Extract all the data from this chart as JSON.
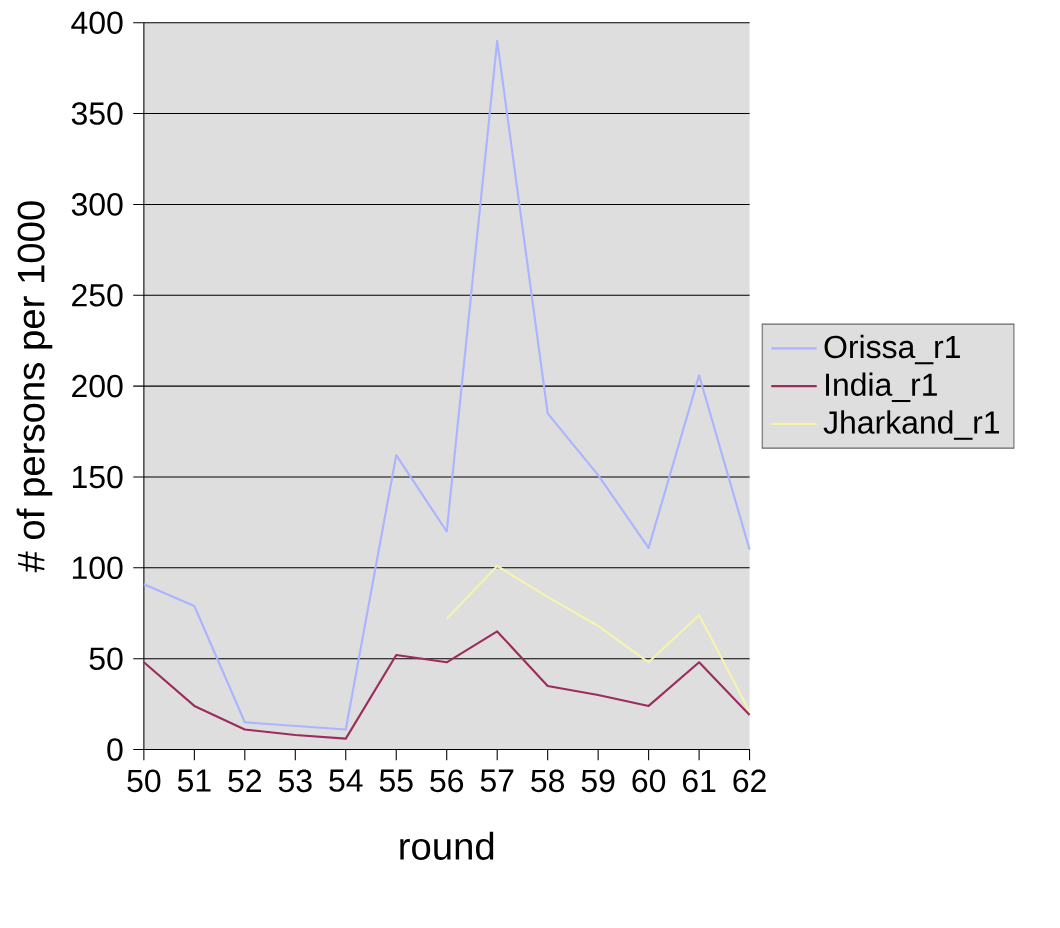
{
  "chart_data": {
    "type": "line",
    "xlabel": "round",
    "ylabel": "# of persons per 1000",
    "x": [
      50,
      51,
      52,
      53,
      54,
      55,
      56,
      57,
      58,
      59,
      60,
      61,
      62
    ],
    "series": [
      {
        "name": "Orissa_r1",
        "color": "#aab4ff",
        "values": [
          91,
          79,
          15,
          13,
          11,
          162,
          120,
          390,
          185,
          151,
          111,
          206,
          110
        ]
      },
      {
        "name": "India_r1",
        "color": "#9c2c5c",
        "values": [
          48,
          24,
          11,
          8,
          6,
          52,
          48,
          65,
          35,
          30,
          24,
          48,
          19
        ]
      },
      {
        "name": "Jharkand_r1",
        "color": "#f4f4b0",
        "values": [
          null,
          null,
          null,
          null,
          null,
          null,
          72,
          101,
          84,
          68,
          48,
          74,
          21
        ]
      }
    ],
    "xlim": [
      50,
      62
    ],
    "ylim": [
      0,
      400
    ],
    "xticks": [
      50,
      51,
      52,
      53,
      54,
      55,
      56,
      57,
      58,
      59,
      60,
      61,
      62
    ],
    "yticks": [
      0,
      50,
      100,
      150,
      200,
      250,
      300,
      350,
      400
    ],
    "grid": "y",
    "legend": "right",
    "marker": "none",
    "line_style": "solid"
  }
}
